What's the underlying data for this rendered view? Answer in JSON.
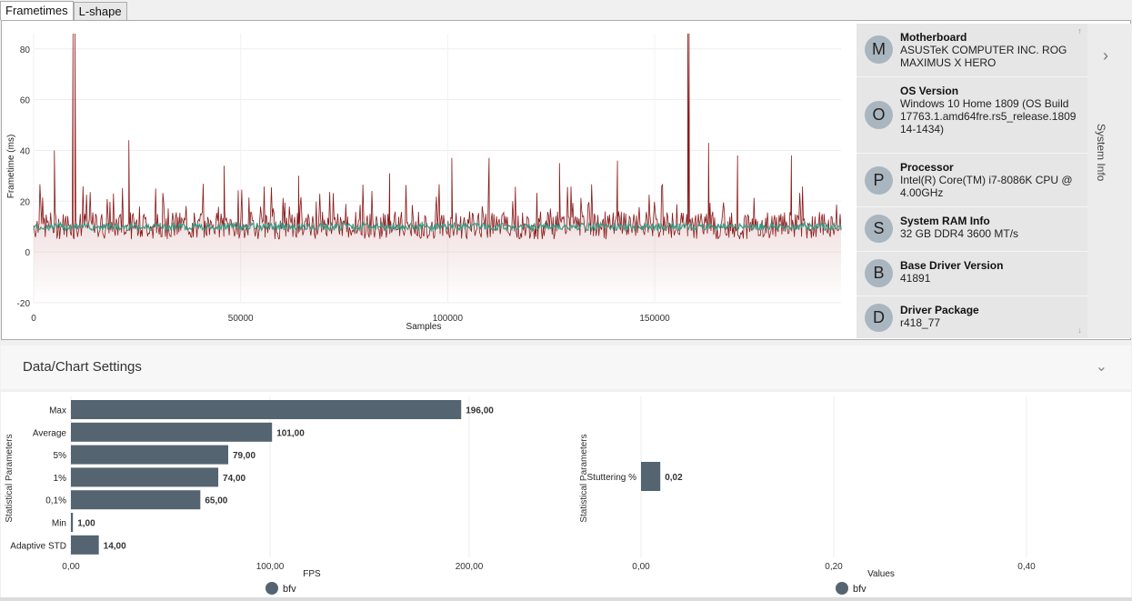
{
  "tabs": [
    {
      "label": "Frametimes",
      "active": true
    },
    {
      "label": "L-shape",
      "active": false
    }
  ],
  "frametime_chart": {
    "chart_data": {
      "type": "line",
      "xlabel": "Samples",
      "ylabel": "Frametime (ms)",
      "xlim": [
        0,
        195000
      ],
      "ylim": [
        -20,
        86
      ],
      "xticks": [
        0,
        50000,
        100000,
        150000
      ],
      "yticks": [
        -20,
        0,
        20,
        40,
        60,
        80
      ],
      "grid": true,
      "series": [
        {
          "role": "frametimes",
          "color": "#8b1a1a",
          "baseline": 10,
          "noise_band": [
            5,
            16
          ],
          "spikes": [
            {
              "x": 5000,
              "y": 40
            },
            {
              "x": 9500,
              "y": 86
            },
            {
              "x": 10000,
              "y": 86
            },
            {
              "x": 23000,
              "y": 44
            },
            {
              "x": 46000,
              "y": 34
            },
            {
              "x": 64000,
              "y": 30
            },
            {
              "x": 86000,
              "y": 31
            },
            {
              "x": 101000,
              "y": 37
            },
            {
              "x": 110000,
              "y": 37
            },
            {
              "x": 127000,
              "y": 35
            },
            {
              "x": 141000,
              "y": 36
            },
            {
              "x": 158000,
              "y": 86
            },
            {
              "x": 158300,
              "y": 86
            },
            {
              "x": 163000,
              "y": 43
            },
            {
              "x": 170000,
              "y": 38
            },
            {
              "x": 183000,
              "y": 38
            }
          ]
        },
        {
          "role": "moving-average",
          "color": "#3a9a85",
          "baseline": 10
        }
      ]
    },
    "area_fill_color": "#c98a8a"
  },
  "system_info": {
    "items": [
      {
        "initial": "M",
        "title": "Motherboard",
        "value": "ASUSTeK COMPUTER INC. ROG MAXIMUS X HERO"
      },
      {
        "initial": "O",
        "title": "OS Version",
        "value": "Windows 10 Home 1809 (OS Build 17763.1.amd64fre.rs5_release.180914-1434)"
      },
      {
        "initial": "P",
        "title": "Processor",
        "value": "Intel(R) Core(TM) i7-8086K CPU @ 4.00GHz"
      },
      {
        "initial": "S",
        "title": "System RAM Info",
        "value": "32 GB DDR4 3600 MT/s"
      },
      {
        "initial": "B",
        "title": "Base Driver Version",
        "value": "41891"
      },
      {
        "initial": "D",
        "title": "Driver Package",
        "value": "r418_77"
      }
    ],
    "toggle_label": "System Info",
    "toggle_icon": "chevron-right-icon",
    "scroll_up_icon": "arrow-up-icon",
    "scroll_down_icon": "arrow-down-icon"
  },
  "settings": {
    "title": "Data/Chart Settings",
    "expand_icon": "chevron-down-icon"
  },
  "chart_data": [
    {
      "type": "bar",
      "orientation": "horizontal",
      "ylabel": "Statistical Parameters",
      "xlabel": "FPS",
      "xlim": [
        0,
        240
      ],
      "xticks": [
        "0,00",
        "100,00",
        "200,00"
      ],
      "xtick_values": [
        0,
        100,
        200
      ],
      "categories": [
        "Max",
        "Average",
        "5%",
        "1%",
        "0,1%",
        "Min",
        "Adaptive STD"
      ],
      "series": [
        {
          "name": "bfv",
          "color": "#546470",
          "values": [
            196,
            101,
            79,
            74,
            65,
            1,
            14
          ],
          "labels": [
            "196,00",
            "101,00",
            "79,00",
            "74,00",
            "65,00",
            "1,00",
            "14,00"
          ]
        }
      ],
      "legend": "bottom"
    },
    {
      "type": "bar",
      "orientation": "horizontal",
      "ylabel": "Statistical Parameters",
      "xlabel": "Values",
      "xlim": [
        0,
        0.5
      ],
      "xticks": [
        "0,00",
        "0,20",
        "0,40"
      ],
      "xtick_values": [
        0,
        0.2,
        0.4
      ],
      "categories": [
        "Stuttering %"
      ],
      "series": [
        {
          "name": "bfv",
          "color": "#546470",
          "values": [
            0.02
          ],
          "labels": [
            "0,02"
          ]
        }
      ],
      "legend": "bottom"
    }
  ]
}
